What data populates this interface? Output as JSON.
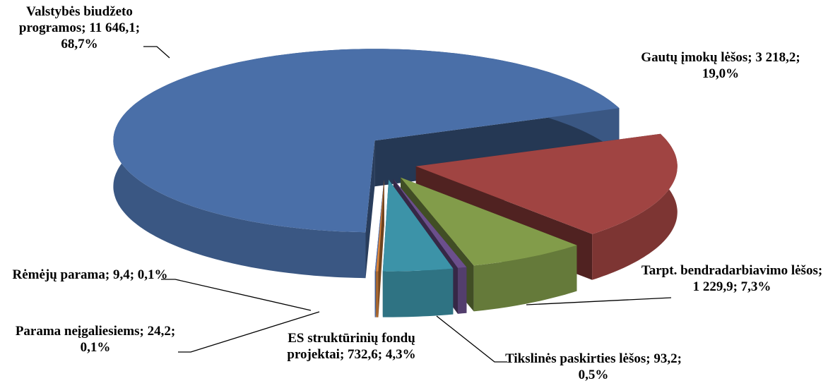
{
  "chart_data": {
    "type": "pie3d",
    "categories": [
      "Valstybės biudžeto programos;",
      "Gautų įmokų lėšos;",
      "Tarpt. bendradarbiavimo lėšos;",
      "Tikslinės paskirties lėšos;",
      "ES struktūrinių fondų projektai;",
      "Parama neįgaliesiems;",
      "Rėmėjų parama;"
    ],
    "values": [
      11646.1,
      3218.2,
      1229.9,
      93.2,
      732.6,
      24.2,
      9.4
    ],
    "value_labels": [
      "11 646,1;",
      "3 218,2;",
      "1 229,9;",
      "93,2;",
      "732,6;",
      "24,2;",
      "9,4;"
    ],
    "percents": [
      68.7,
      19.0,
      7.3,
      0.5,
      4.3,
      0.1,
      0.1
    ],
    "percent_labels": [
      "68,7%",
      "19,0%",
      "7,3%",
      "0,5%",
      "4,3%",
      "0,1%",
      "0,1%"
    ],
    "colors": [
      "#4a6fa8",
      "#a04442",
      "#829c4a",
      "#6b4f8c",
      "#3c93a8",
      "#d9853d",
      "#5b7fc4"
    ]
  }
}
